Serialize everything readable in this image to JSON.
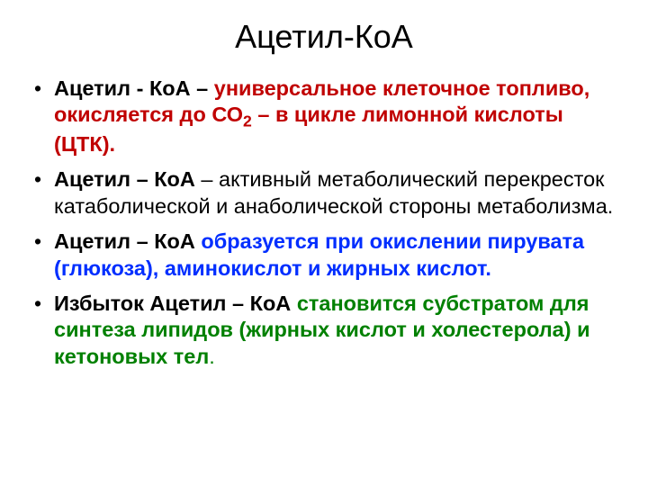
{
  "slide": {
    "title": "Ацетил-КоА",
    "title_fontsize": 36,
    "title_color": "#000000",
    "background_color": "#ffffff",
    "body_fontsize": 23.5,
    "colors": {
      "text": "#000000",
      "red": "#c00000",
      "blue": "#002eff",
      "green": "#008000"
    },
    "bullets": [
      {
        "lead_bold": "Ацетил - КоА",
        "dash": " – ",
        "red_part_prefix": "универсальное клеточное топливо, окисляется до СО",
        "red_sub": "2",
        "red_part_suffix": " – в цикле лимонной кислоты (ЦТК)."
      },
      {
        "lead_bold": "Ацетил – КоА",
        "dash": " – ",
        "rest_plain": "активный метаболический перекресток катаболической и анаболической стороны метаболизма."
      },
      {
        "lead_bold": "Ацетил – КоА ",
        "blue_part": "образуется при окислении пирувата (глюкоза), аминокислот и жирных кислот."
      },
      {
        "lead_bold": "Избыток Ацетил – КоА ",
        "green_part": "становится субстратом для синтеза липидов (жирных кислот и холестерола) и кетоновых тел",
        "green_tail": "."
      }
    ]
  }
}
